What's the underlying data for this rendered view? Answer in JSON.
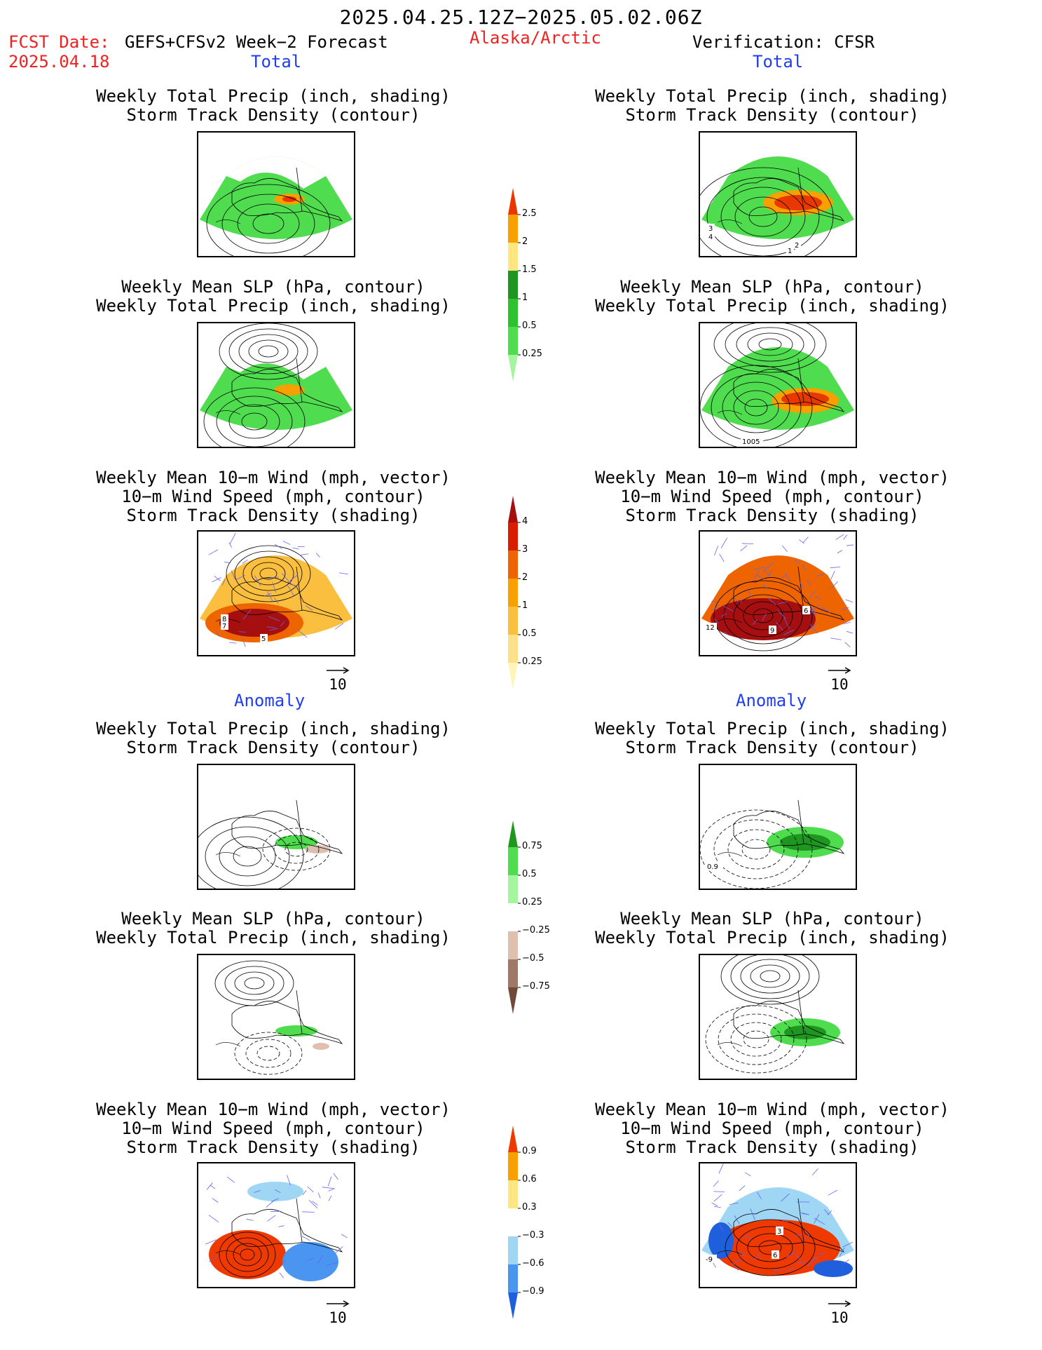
{
  "header": {
    "period": "2025.04.25.12Z−2025.05.02.06Z",
    "fcst_label": "FCST Date:",
    "model": "GEFS+CFSv2 Week−2 Forecast",
    "fcst_date": "2025.04.18",
    "region": "Alaska/Arctic",
    "verification": "Verification: CFSR"
  },
  "sections": {
    "total": "Total",
    "anomaly": "Anomaly"
  },
  "panel_titles": {
    "precip_storm": [
      "Weekly Total Precip (inch, shading)",
      "Storm Track Density (contour)"
    ],
    "slp_precip": [
      "Weekly Mean SLP (hPa, contour)",
      "Weekly Total Precip (inch, shading)"
    ],
    "wind_storm": [
      "Weekly Mean 10−m Wind (mph, vector)",
      "10−m Wind Speed (mph, contour)",
      "Storm Track Density (shading)"
    ]
  },
  "panels": [
    {
      "id": "fc-total-precip",
      "labels": []
    },
    {
      "id": "vf-total-precip",
      "labels": [
        "3",
        "4",
        "2",
        "1"
      ]
    },
    {
      "id": "fc-total-slp",
      "labels": []
    },
    {
      "id": "vf-total-slp",
      "labels": [
        "1005"
      ]
    },
    {
      "id": "fc-total-wind",
      "labels": [
        "8",
        "7",
        "5"
      ]
    },
    {
      "id": "vf-total-wind",
      "labels": [
        "6",
        "12",
        "9"
      ]
    },
    {
      "id": "fc-anom-precip",
      "labels": []
    },
    {
      "id": "vf-anom-precip",
      "labels": [
        "0.9"
      ]
    },
    {
      "id": "fc-anom-slp",
      "labels": []
    },
    {
      "id": "vf-anom-slp",
      "labels": []
    },
    {
      "id": "fc-anom-wind",
      "labels": []
    },
    {
      "id": "vf-anom-wind",
      "labels": [
        "3",
        "6",
        "-9"
      ]
    }
  ],
  "vector_ref": "10",
  "chart_data": [
    {
      "type": "heatmap",
      "name": "total-precip-colorbar",
      "levels": [
        0.25,
        0.5,
        1,
        1.5,
        2,
        2.5
      ],
      "colors": [
        "#a5f59f",
        "#4fdd4f",
        "#2fc22f",
        "#1f961f",
        "#ffe680",
        "#f7a000",
        "#e83800"
      ],
      "tick_labels": [
        "2.5",
        "2",
        "1.5",
        "1",
        "0.5",
        "0.25"
      ]
    },
    {
      "type": "heatmap",
      "name": "total-storm-colorbar",
      "levels": [
        0.25,
        0.5,
        1,
        2,
        3,
        4
      ],
      "colors": [
        "#fff5b8",
        "#ffe08a",
        "#fbbf3f",
        "#f7a000",
        "#ee6400",
        "#d91e00",
        "#a50f0f"
      ],
      "tick_labels": [
        "4",
        "3",
        "2",
        "1",
        "0.5",
        "0.25"
      ]
    },
    {
      "type": "heatmap",
      "name": "anom-precip-colorbar",
      "levels": [
        -0.75,
        -0.5,
        -0.25,
        0.25,
        0.5,
        0.75
      ],
      "colors": [
        "#6e4a3a",
        "#a07868",
        "#dfc0b0",
        "#ffffff",
        "#a5f59f",
        "#4fdd4f",
        "#1f961f"
      ],
      "tick_labels": [
        "0.75",
        "0.5",
        "0.25",
        "−0.25",
        "−0.5",
        "−0.75"
      ]
    },
    {
      "type": "heatmap",
      "name": "anom-storm-colorbar",
      "levels": [
        -0.9,
        -0.6,
        -0.3,
        0.3,
        0.6,
        0.9
      ],
      "colors": [
        "#1f5fdc",
        "#4a95f0",
        "#9fd6f4",
        "#ffffff",
        "#ffe680",
        "#f7a000",
        "#ee3a00"
      ],
      "tick_labels": [
        "0.9",
        "0.6",
        "0.3",
        "−0.3",
        "−0.6",
        "−0.9"
      ]
    }
  ],
  "colors": {
    "land_green": "#4fdd4f",
    "light_green": "#a5f59f",
    "dark_green": "#1f961f",
    "orange": "#f7a000",
    "red": "#e83800",
    "dark_red": "#a50f0f",
    "brown": "#dfc0b0",
    "vector_blue": "#6464f0"
  }
}
